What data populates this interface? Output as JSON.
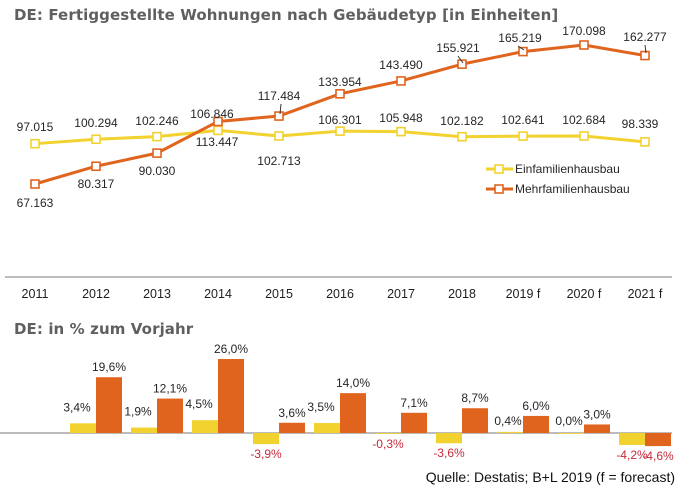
{
  "chart_data": [
    {
      "type": "line",
      "title": "DE: Fertiggestellte Wohnungen nach Gebäudetyp [in Einheiten]",
      "categories": [
        "2011",
        "2012",
        "2013",
        "2014",
        "2015",
        "2016",
        "2017",
        "2018",
        "2019 f",
        "2020 f",
        "2021 f"
      ],
      "series": [
        {
          "name": "Einfamilienhausbau",
          "color": "#f2d22e",
          "values": [
            97015,
            100294,
            102246,
            106846,
            102713,
            106301,
            105948,
            102182,
            102641,
            102684,
            98339
          ],
          "labels": [
            "97.015",
            "100.294",
            "102.246",
            "106.846",
            "102.713",
            "106.301",
            "105.948",
            "102.182",
            "102.641",
            "102.684",
            "98.339"
          ]
        },
        {
          "name": "Mehrfamilienhausbau",
          "color": "#e0641e",
          "values": [
            67163,
            80317,
            90030,
            113447,
            117484,
            133954,
            143490,
            155921,
            165219,
            170098,
            162277
          ],
          "labels": [
            "67.163",
            "80.317",
            "90.030",
            "113.447",
            "117.484",
            "133.954",
            "143.490",
            "155.921",
            "165.219",
            "170.098",
            "162.277"
          ]
        }
      ],
      "legend": "right",
      "grid": false,
      "ylim": [
        40000,
        185000
      ],
      "xlabel": "",
      "ylabel": ""
    },
    {
      "type": "bar",
      "title": "DE: in % zum Vorjahr",
      "categories": [
        "2011",
        "2012",
        "2013",
        "2014",
        "2015",
        "2016",
        "2017",
        "2018",
        "2019 f",
        "2020 f",
        "2021 f"
      ],
      "series": [
        {
          "name": "Einfamilienhausbau",
          "color": "#f2d22e",
          "values": [
            null,
            3.4,
            1.9,
            4.5,
            -3.9,
            3.5,
            -0.3,
            -3.6,
            0.4,
            0.0,
            -4.2
          ],
          "labels": [
            "",
            "3,4%",
            "1,9%",
            "4,5%",
            "-3,9%",
            "3,5%",
            "-0,3%",
            "-3,6%",
            "0,4%",
            "0,0%",
            "-4,2%"
          ]
        },
        {
          "name": "Mehrfamilienhausbau",
          "color": "#e0641e",
          "values": [
            null,
            19.6,
            12.1,
            26.0,
            3.6,
            14.0,
            7.1,
            8.7,
            6.0,
            3.0,
            -4.6
          ],
          "labels": [
            "",
            "19,6%",
            "12,1%",
            "26,0%",
            "3,6%",
            "14,0%",
            "7,1%",
            "8,7%",
            "6,0%",
            "3,0%",
            "-4,6%"
          ]
        }
      ],
      "unit": "%",
      "grid": false,
      "ylim": [
        -6,
        28
      ]
    }
  ],
  "source": "Quelle: Destatis; B+L 2019 (f = forecast)",
  "colors": {
    "einfamilien": "#f2d22e",
    "mehrfamilien": "#e0641e",
    "negative_label": "#c8293a",
    "title": "#5f5f62",
    "axis": "#a6a6a6"
  }
}
